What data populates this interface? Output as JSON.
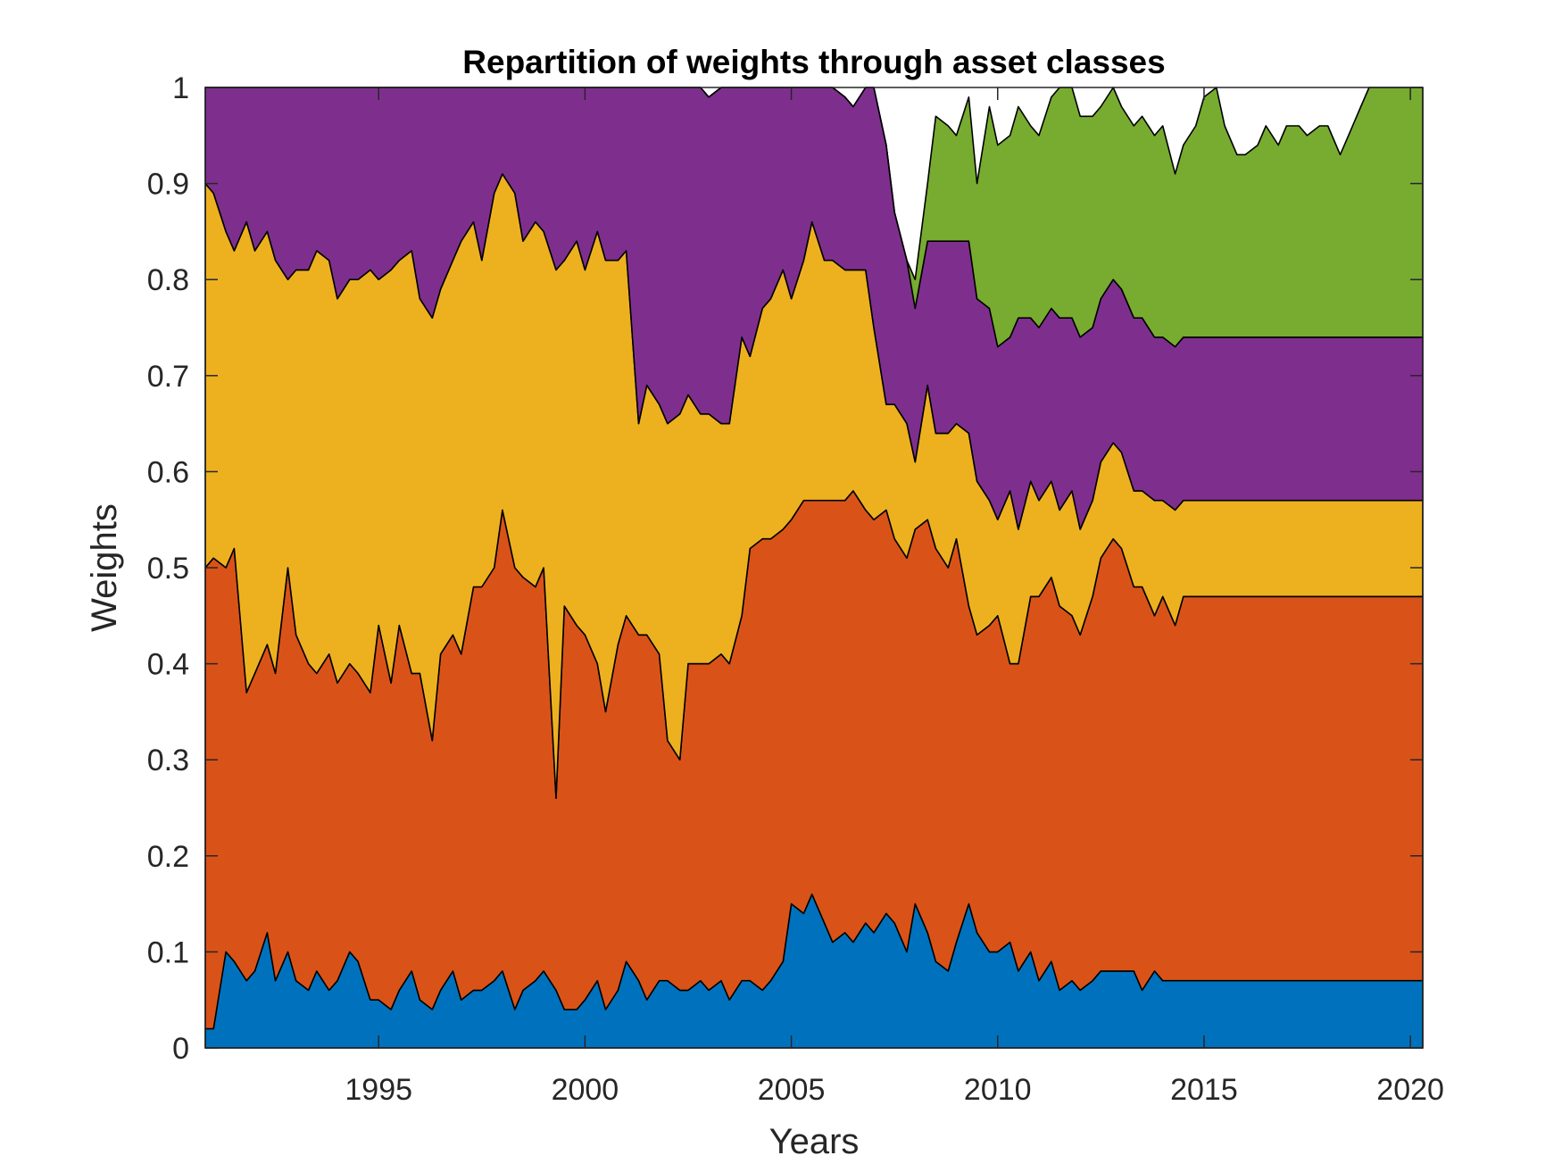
{
  "chart_data": {
    "type": "area",
    "stacked": true,
    "title": "Repartition of weights through asset classes",
    "xlabel": "Years",
    "ylabel": "Weights",
    "xlim": [
      1990.8,
      2020.3
    ],
    "ylim": [
      0,
      1
    ],
    "xticks": [
      1995,
      2000,
      2005,
      2010,
      2015,
      2020
    ],
    "xtick_labels": [
      "1995",
      "2000",
      "2005",
      "2010",
      "2015",
      "2020"
    ],
    "yticks": [
      0,
      0.1,
      0.2,
      0.3,
      0.4,
      0.5,
      0.6,
      0.7,
      0.8,
      0.9,
      1
    ],
    "ytick_labels": [
      "0",
      "0.1",
      "0.2",
      "0.3",
      "0.4",
      "0.5",
      "0.6",
      "0.7",
      "0.8",
      "0.9",
      "1"
    ],
    "grid": false,
    "legend": "none",
    "x": [
      1990.8,
      1991.0,
      1991.3,
      1991.5,
      1991.8,
      1992.0,
      1992.3,
      1992.5,
      1992.8,
      1993.0,
      1993.3,
      1993.5,
      1993.8,
      1994.0,
      1994.3,
      1994.5,
      1994.8,
      1995.0,
      1995.3,
      1995.5,
      1995.8,
      1996.0,
      1996.3,
      1996.5,
      1996.8,
      1997.0,
      1997.3,
      1997.5,
      1997.8,
      1998.0,
      1998.3,
      1998.5,
      1998.8,
      1999.0,
      1999.3,
      1999.5,
      1999.8,
      2000.0,
      2000.3,
      2000.5,
      2000.8,
      2001.0,
      2001.3,
      2001.5,
      2001.8,
      2002.0,
      2002.3,
      2002.5,
      2002.8,
      2003.0,
      2003.3,
      2003.5,
      2003.8,
      2004.0,
      2004.3,
      2004.5,
      2004.8,
      2005.0,
      2005.3,
      2005.5,
      2005.8,
      2006.0,
      2006.3,
      2006.5,
      2006.8,
      2007.0,
      2007.3,
      2007.5,
      2007.8,
      2008.0,
      2008.3,
      2008.5,
      2008.8,
      2009.0,
      2009.3,
      2009.5,
      2009.8,
      2010.0,
      2010.3,
      2010.5,
      2010.8,
      2011.0,
      2011.3,
      2011.5,
      2011.8,
      2012.0,
      2012.3,
      2012.5,
      2012.8,
      2013.0,
      2013.3,
      2013.5,
      2013.8,
      2014.0,
      2014.3,
      2014.5,
      2014.8,
      2015.0,
      2015.3,
      2015.5,
      2015.8,
      2016.0,
      2016.3,
      2016.5,
      2016.8,
      2017.0,
      2017.3,
      2017.5,
      2017.8,
      2018.0,
      2018.3,
      2018.5,
      2018.8,
      2019.0,
      2019.3,
      2019.5,
      2019.8,
      2020.0,
      2020.3
    ],
    "series": [
      {
        "color": "#0072BD",
        "values": [
          0.02,
          0.02,
          0.1,
          0.09,
          0.07,
          0.08,
          0.12,
          0.07,
          0.1,
          0.07,
          0.06,
          0.08,
          0.06,
          0.07,
          0.1,
          0.09,
          0.05,
          0.05,
          0.04,
          0.06,
          0.08,
          0.05,
          0.04,
          0.06,
          0.08,
          0.05,
          0.06,
          0.06,
          0.07,
          0.08,
          0.04,
          0.06,
          0.07,
          0.08,
          0.06,
          0.04,
          0.04,
          0.05,
          0.07,
          0.04,
          0.06,
          0.09,
          0.07,
          0.05,
          0.07,
          0.07,
          0.06,
          0.06,
          0.07,
          0.06,
          0.07,
          0.05,
          0.07,
          0.07,
          0.06,
          0.07,
          0.09,
          0.15,
          0.14,
          0.16,
          0.13,
          0.11,
          0.12,
          0.11,
          0.13,
          0.12,
          0.14,
          0.13,
          0.1,
          0.15,
          0.12,
          0.09,
          0.08,
          0.11,
          0.15,
          0.12,
          0.1,
          0.1,
          0.11,
          0.08,
          0.1,
          0.07,
          0.09,
          0.06,
          0.07,
          0.06,
          0.07,
          0.08,
          0.08,
          0.08,
          0.08,
          0.06,
          0.08,
          0.07,
          0.07,
          0.07,
          0.07,
          0.07,
          0.07,
          0.07,
          0.07,
          0.07,
          0.07,
          0.07,
          0.07,
          0.07,
          0.07,
          0.07,
          0.07,
          0.07,
          0.07,
          0.07,
          0.07,
          0.07,
          0.07,
          0.07,
          0.07,
          0.07,
          0.07
        ]
      },
      {
        "color": "#D95319",
        "values": [
          0.48,
          0.49,
          0.4,
          0.43,
          0.3,
          0.31,
          0.3,
          0.32,
          0.4,
          0.36,
          0.34,
          0.31,
          0.35,
          0.31,
          0.3,
          0.3,
          0.32,
          0.39,
          0.34,
          0.38,
          0.31,
          0.34,
          0.28,
          0.35,
          0.35,
          0.36,
          0.42,
          0.42,
          0.43,
          0.48,
          0.46,
          0.43,
          0.41,
          0.42,
          0.2,
          0.42,
          0.4,
          0.38,
          0.33,
          0.31,
          0.36,
          0.36,
          0.36,
          0.38,
          0.34,
          0.25,
          0.24,
          0.34,
          0.33,
          0.34,
          0.34,
          0.35,
          0.38,
          0.45,
          0.47,
          0.46,
          0.45,
          0.4,
          0.43,
          0.41,
          0.44,
          0.46,
          0.45,
          0.47,
          0.43,
          0.43,
          0.42,
          0.4,
          0.41,
          0.39,
          0.43,
          0.43,
          0.42,
          0.42,
          0.31,
          0.31,
          0.34,
          0.35,
          0.29,
          0.32,
          0.37,
          0.4,
          0.4,
          0.4,
          0.38,
          0.37,
          0.4,
          0.43,
          0.45,
          0.44,
          0.4,
          0.42,
          0.37,
          0.4,
          0.37,
          0.4,
          0.4,
          0.4,
          0.4,
          0.4,
          0.4,
          0.4,
          0.4,
          0.4,
          0.4,
          0.4,
          0.4,
          0.4,
          0.4,
          0.4,
          0.4,
          0.4,
          0.4,
          0.4,
          0.4,
          0.4,
          0.4,
          0.4,
          0.4
        ]
      },
      {
        "color": "#EDB120",
        "values": [
          0.4,
          0.38,
          0.35,
          0.31,
          0.49,
          0.44,
          0.43,
          0.43,
          0.3,
          0.38,
          0.41,
          0.44,
          0.41,
          0.4,
          0.4,
          0.41,
          0.44,
          0.36,
          0.43,
          0.38,
          0.44,
          0.39,
          0.44,
          0.38,
          0.39,
          0.43,
          0.38,
          0.34,
          0.39,
          0.35,
          0.39,
          0.35,
          0.38,
          0.35,
          0.55,
          0.36,
          0.4,
          0.38,
          0.45,
          0.47,
          0.4,
          0.38,
          0.22,
          0.26,
          0.26,
          0.33,
          0.36,
          0.28,
          0.26,
          0.26,
          0.24,
          0.25,
          0.29,
          0.2,
          0.24,
          0.25,
          0.27,
          0.23,
          0.25,
          0.29,
          0.25,
          0.25,
          0.24,
          0.23,
          0.25,
          0.2,
          0.11,
          0.14,
          0.14,
          0.07,
          0.14,
          0.12,
          0.14,
          0.12,
          0.18,
          0.16,
          0.13,
          0.1,
          0.18,
          0.14,
          0.12,
          0.1,
          0.1,
          0.1,
          0.13,
          0.11,
          0.1,
          0.1,
          0.1,
          0.1,
          0.1,
          0.1,
          0.12,
          0.1,
          0.12,
          0.1,
          0.1,
          0.1,
          0.1,
          0.1,
          0.1,
          0.1,
          0.1,
          0.1,
          0.1,
          0.1,
          0.1,
          0.1,
          0.1,
          0.1,
          0.1,
          0.1,
          0.1,
          0.1,
          0.1,
          0.1,
          0.1,
          0.1,
          0.1
        ]
      },
      {
        "color": "#7E2F8E",
        "values": [
          0.1,
          0.11,
          0.15,
          0.17,
          0.14,
          0.17,
          0.15,
          0.18,
          0.2,
          0.19,
          0.19,
          0.17,
          0.18,
          0.22,
          0.2,
          0.2,
          0.19,
          0.2,
          0.19,
          0.18,
          0.17,
          0.22,
          0.24,
          0.21,
          0.18,
          0.16,
          0.14,
          0.18,
          0.11,
          0.09,
          0.11,
          0.16,
          0.14,
          0.15,
          0.19,
          0.18,
          0.16,
          0.19,
          0.15,
          0.18,
          0.18,
          0.17,
          0.35,
          0.31,
          0.33,
          0.35,
          0.34,
          0.32,
          0.34,
          0.33,
          0.35,
          0.35,
          0.26,
          0.32,
          0.24,
          0.22,
          0.19,
          0.22,
          0.18,
          0.14,
          0.18,
          0.18,
          0.18,
          0.17,
          0.19,
          0.25,
          0.27,
          0.2,
          0.17,
          0.16,
          0.15,
          0.2,
          0.2,
          0.19,
          0.2,
          0.19,
          0.2,
          0.18,
          0.16,
          0.22,
          0.17,
          0.18,
          0.18,
          0.2,
          0.18,
          0.2,
          0.18,
          0.17,
          0.17,
          0.17,
          0.18,
          0.18,
          0.17,
          0.17,
          0.17,
          0.17,
          0.17,
          0.17,
          0.17,
          0.17,
          0.17,
          0.17,
          0.17,
          0.17,
          0.17,
          0.17,
          0.17,
          0.17,
          0.17,
          0.17,
          0.17,
          0.17,
          0.17,
          0.17,
          0.17,
          0.17,
          0.17,
          0.17,
          0.17
        ]
      },
      {
        "color": "#77AC30",
        "values": [
          0,
          0,
          0,
          0,
          0,
          0,
          0,
          0,
          0,
          0,
          0,
          0,
          0,
          0,
          0,
          0,
          0,
          0,
          0,
          0,
          0,
          0,
          0,
          0,
          0,
          0,
          0,
          0,
          0,
          0,
          0,
          0,
          0,
          0,
          0,
          0,
          0,
          0,
          0,
          0,
          0,
          0,
          0,
          0,
          0,
          0,
          0,
          0,
          0,
          0,
          0,
          0,
          0,
          0,
          0,
          0,
          0,
          0,
          0,
          0,
          0,
          0,
          0,
          0,
          0,
          0,
          0,
          0,
          0,
          0.03,
          0.06,
          0.13,
          0.12,
          0.11,
          0.15,
          0.12,
          0.21,
          0.21,
          0.21,
          0.22,
          0.2,
          0.2,
          0.22,
          0.25,
          0.24,
          0.23,
          0.22,
          0.2,
          0.21,
          0.19,
          0.2,
          0.21,
          0.21,
          0.22,
          0.18,
          0.2,
          0.22,
          0.25,
          0.26,
          0.22,
          0.19,
          0.19,
          0.2,
          0.22,
          0.2,
          0.22,
          0.22,
          0.21,
          0.22,
          0.22,
          0.19,
          0.21,
          0.24,
          0.26,
          0.28,
          0.3,
          0.28,
          0.28,
          0.28
        ]
      }
    ]
  }
}
